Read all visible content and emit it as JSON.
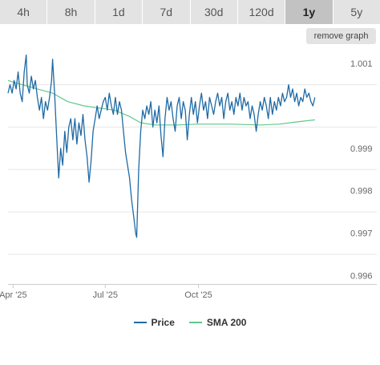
{
  "timeframes": [
    {
      "label": "4h",
      "active": false
    },
    {
      "label": "8h",
      "active": false
    },
    {
      "label": "1d",
      "active": false
    },
    {
      "label": "7d",
      "active": false
    },
    {
      "label": "30d",
      "active": false
    },
    {
      "label": "120d",
      "active": false
    },
    {
      "label": "1y",
      "active": true
    },
    {
      "label": "5y",
      "active": false
    }
  ],
  "remove_graph_label": "remove graph",
  "colors": {
    "price": "#1f6aa5",
    "sma": "#5ec98a"
  },
  "chart_data": {
    "type": "line",
    "title": "",
    "xlabel": "",
    "ylabel": "",
    "ylim": [
      0.9958,
      1.0014
    ],
    "xlim": [
      "2025-03-27",
      "2026-02-24"
    ],
    "y_ticks": [
      {
        "value": 1.001,
        "label": "1.001"
      },
      {
        "value": 0.999,
        "label": "0.999"
      },
      {
        "value": 0.998,
        "label": "0.998"
      },
      {
        "value": 0.997,
        "label": "0.997"
      },
      {
        "value": 0.996,
        "label": "0.996"
      }
    ],
    "y_gridlines": [
      1.0015,
      1.0005,
      0.9995,
      0.9985,
      0.9975,
      0.9965,
      0.9955
    ],
    "x_ticks": [
      {
        "date": "2025-04-01",
        "label": "Apr '25"
      },
      {
        "date": "2025-07-01",
        "label": "Jul '25"
      },
      {
        "date": "2025-10-01",
        "label": "Oct '25"
      }
    ],
    "legend_position": "bottom-center",
    "series": [
      {
        "name": "Price",
        "points": [
          [
            "2025-03-27",
            1.0003
          ],
          [
            "2025-03-29",
            1.0005
          ],
          [
            "2025-03-31",
            1.0003
          ],
          [
            "2025-04-02",
            1.0006
          ],
          [
            "2025-04-04",
            1.0004
          ],
          [
            "2025-04-06",
            1.0008
          ],
          [
            "2025-04-08",
            1.0003
          ],
          [
            "2025-04-10",
            1.0001
          ],
          [
            "2025-04-12",
            1.0008
          ],
          [
            "2025-04-14",
            1.0012
          ],
          [
            "2025-04-15",
            1.0005
          ],
          [
            "2025-04-17",
            1.0003
          ],
          [
            "2025-04-19",
            1.0007
          ],
          [
            "2025-04-21",
            1.0004
          ],
          [
            "2025-04-23",
            1.0006
          ],
          [
            "2025-04-25",
            1.0002
          ],
          [
            "2025-04-27",
            0.9999
          ],
          [
            "2025-04-29",
            1.0002
          ],
          [
            "2025-05-01",
            0.9997
          ],
          [
            "2025-05-03",
            1.0001
          ],
          [
            "2025-05-05",
            0.9999
          ],
          [
            "2025-05-07",
            1.0002
          ],
          [
            "2025-05-09",
            1.0006
          ],
          [
            "2025-05-10",
            1.0011
          ],
          [
            "2025-05-12",
            1.0003
          ],
          [
            "2025-05-14",
            0.9993
          ],
          [
            "2025-05-16",
            0.9983
          ],
          [
            "2025-05-18",
            0.999
          ],
          [
            "2025-05-20",
            0.9986
          ],
          [
            "2025-05-22",
            0.9994
          ],
          [
            "2025-05-24",
            0.9989
          ],
          [
            "2025-05-26",
            0.9995
          ],
          [
            "2025-05-28",
            0.9997
          ],
          [
            "2025-05-30",
            0.9992
          ],
          [
            "2025-06-01",
            0.9997
          ],
          [
            "2025-06-03",
            0.9991
          ],
          [
            "2025-06-05",
            0.9996
          ],
          [
            "2025-06-07",
            0.9993
          ],
          [
            "2025-06-09",
            0.9998
          ],
          [
            "2025-06-11",
            0.9992
          ],
          [
            "2025-06-13",
            0.9988
          ],
          [
            "2025-06-15",
            0.9982
          ],
          [
            "2025-06-17",
            0.9987
          ],
          [
            "2025-06-19",
            0.9994
          ],
          [
            "2025-06-21",
            0.9997
          ],
          [
            "2025-06-23",
            1.0
          ],
          [
            "2025-06-25",
            0.9997
          ],
          [
            "2025-06-27",
            0.9999
          ],
          [
            "2025-06-29",
            1.0001
          ],
          [
            "2025-07-01",
            1.0002
          ],
          [
            "2025-07-03",
            0.9999
          ],
          [
            "2025-07-05",
            1.0003
          ],
          [
            "2025-07-07",
            1.0
          ],
          [
            "2025-07-09",
            0.9998
          ],
          [
            "2025-07-11",
            1.0002
          ],
          [
            "2025-07-13",
            0.9998
          ],
          [
            "2025-07-15",
            1.0001
          ],
          [
            "2025-07-17",
            0.9999
          ],
          [
            "2025-07-19",
            0.9994
          ],
          [
            "2025-07-21",
            0.9989
          ],
          [
            "2025-07-23",
            0.9986
          ],
          [
            "2025-07-25",
            0.9983
          ],
          [
            "2025-07-27",
            0.9978
          ],
          [
            "2025-07-29",
            0.9974
          ],
          [
            "2025-07-31",
            0.997
          ],
          [
            "2025-08-01",
            0.9969
          ],
          [
            "2025-08-03",
            0.9985
          ],
          [
            "2025-08-05",
            0.9994
          ],
          [
            "2025-08-07",
            0.9999
          ],
          [
            "2025-08-09",
            0.9997
          ],
          [
            "2025-08-11",
            1.0
          ],
          [
            "2025-08-13",
            0.9998
          ],
          [
            "2025-08-15",
            1.0001
          ],
          [
            "2025-08-17",
            0.9995
          ],
          [
            "2025-08-19",
            0.9999
          ],
          [
            "2025-08-21",
            0.9996
          ],
          [
            "2025-08-23",
            1.0
          ],
          [
            "2025-08-25",
            0.9993
          ],
          [
            "2025-08-27",
            0.9988
          ],
          [
            "2025-08-29",
            0.9997
          ],
          [
            "2025-08-31",
            1.0002
          ],
          [
            "2025-09-02",
            0.9999
          ],
          [
            "2025-09-04",
            1.0001
          ],
          [
            "2025-09-06",
            0.9997
          ],
          [
            "2025-09-08",
            0.9994
          ],
          [
            "2025-09-10",
            1.0
          ],
          [
            "2025-09-12",
            1.0002
          ],
          [
            "2025-09-14",
            0.9997
          ],
          [
            "2025-09-16",
            1.0001
          ],
          [
            "2025-09-18",
            0.9999
          ],
          [
            "2025-09-20",
            0.9992
          ],
          [
            "2025-09-22",
            0.9998
          ],
          [
            "2025-09-24",
            1.0002
          ],
          [
            "2025-09-26",
            0.9998
          ],
          [
            "2025-09-28",
            1.0001
          ],
          [
            "2025-09-30",
            0.9996
          ],
          [
            "2025-10-02",
            1.0
          ],
          [
            "2025-10-04",
            1.0003
          ],
          [
            "2025-10-06",
            0.9999
          ],
          [
            "2025-10-08",
            1.0001
          ],
          [
            "2025-10-10",
            0.9997
          ],
          [
            "2025-10-12",
            1.0002
          ],
          [
            "2025-10-14",
            1.0
          ],
          [
            "2025-10-16",
            0.9998
          ],
          [
            "2025-10-18",
            1.0001
          ],
          [
            "2025-10-20",
            1.0003
          ],
          [
            "2025-10-22",
            1.0
          ],
          [
            "2025-10-24",
            1.0002
          ],
          [
            "2025-10-26",
            0.9997
          ],
          [
            "2025-10-28",
            1.0001
          ],
          [
            "2025-10-30",
            1.0003
          ],
          [
            "2025-11-01",
            0.9999
          ],
          [
            "2025-11-03",
            1.0001
          ],
          [
            "2025-11-05",
            0.9998
          ],
          [
            "2025-11-07",
            1.0002
          ],
          [
            "2025-11-09",
            1.0
          ],
          [
            "2025-11-11",
            1.0003
          ],
          [
            "2025-11-13",
            0.9999
          ],
          [
            "2025-11-15",
            1.0002
          ],
          [
            "2025-11-17",
            1.0
          ],
          [
            "2025-11-19",
            1.0001
          ],
          [
            "2025-11-21",
            0.9997
          ],
          [
            "2025-11-23",
            1.0
          ],
          [
            "2025-11-25",
            0.9998
          ],
          [
            "2025-11-27",
            0.9994
          ],
          [
            "2025-11-29",
            0.9998
          ],
          [
            "2025-12-01",
            1.0001
          ],
          [
            "2025-12-03",
            0.9999
          ],
          [
            "2025-12-05",
            1.0002
          ],
          [
            "2025-12-07",
            1.0
          ],
          [
            "2025-12-09",
            0.9997
          ],
          [
            "2025-12-11",
            1.0002
          ],
          [
            "2025-12-13",
            0.9998
          ],
          [
            "2025-12-15",
            1.0001
          ],
          [
            "2025-12-17",
            0.9999
          ],
          [
            "2025-12-19",
            1.0002
          ],
          [
            "2025-12-21",
            1.0
          ],
          [
            "2025-12-23",
            1.0003
          ],
          [
            "2025-12-25",
            1.0001
          ],
          [
            "2025-12-27",
            1.0002
          ],
          [
            "2025-12-29",
            1.0005
          ],
          [
            "2025-12-31",
            1.0002
          ],
          [
            "2026-01-02",
            1.0004
          ],
          [
            "2026-01-04",
            1.0001
          ],
          [
            "2026-01-06",
            1.0003
          ],
          [
            "2026-01-08",
            1.0
          ],
          [
            "2026-01-10",
            1.0002
          ],
          [
            "2026-01-12",
            1.0001
          ],
          [
            "2026-01-14",
            1.0004
          ],
          [
            "2026-01-16",
            1.0002
          ],
          [
            "2026-01-18",
            1.0003
          ],
          [
            "2026-01-20",
            1.0001
          ],
          [
            "2026-01-22",
            1.0
          ],
          [
            "2026-01-24",
            1.0002
          ]
        ]
      },
      {
        "name": "SMA 200",
        "points": [
          [
            "2025-03-27",
            1.0006
          ],
          [
            "2025-04-10",
            1.0005
          ],
          [
            "2025-04-25",
            1.0004
          ],
          [
            "2025-05-10",
            1.0003
          ],
          [
            "2025-05-25",
            1.0001
          ],
          [
            "2025-06-10",
            1.0
          ],
          [
            "2025-06-25",
            0.99995
          ],
          [
            "2025-07-10",
            0.9999
          ],
          [
            "2025-07-25",
            0.99975
          ],
          [
            "2025-08-05",
            0.9996
          ],
          [
            "2025-08-20",
            0.99955
          ],
          [
            "2025-09-10",
            0.99955
          ],
          [
            "2025-10-01",
            0.99957
          ],
          [
            "2025-11-01",
            0.99957
          ],
          [
            "2025-12-01",
            0.99955
          ],
          [
            "2025-12-20",
            0.99957
          ],
          [
            "2026-01-05",
            0.99962
          ],
          [
            "2026-01-24",
            0.99967
          ]
        ]
      }
    ]
  }
}
